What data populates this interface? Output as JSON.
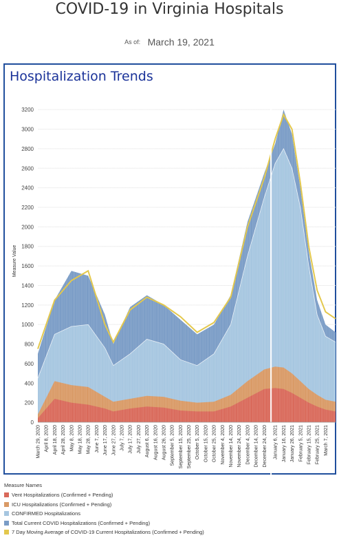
{
  "header": {
    "title": "COVID-19 in Virginia Hospitals",
    "asof_label": "As of:",
    "asof_date": "March 19, 2021"
  },
  "panel": {
    "title": "Hospitalization Trends"
  },
  "legend": {
    "title": "Measure Names",
    "items": [
      {
        "label": "Vent Hospitalizations (Confirmed + Pending)",
        "color": "#d9695a"
      },
      {
        "label": "ICU Hospitalizations (Confirmed + Pending)",
        "color": "#d99a66"
      },
      {
        "label": "CONFIRMED Hospitalizations",
        "color": "#a6c6e0"
      },
      {
        "label": "Total Current COVID Hospitalizations (Confirmed + Pending)",
        "color": "#7a9cc6"
      },
      {
        "label": "7 Day Moving Average of COVID-19 Current Hospitalizations (Confirmed + Pending)",
        "color": "#e3c84d"
      }
    ]
  },
  "chart_data": {
    "type": "area",
    "ylabel": "Measure Value",
    "ylim": [
      0,
      3300
    ],
    "yticks": [
      0,
      200,
      400,
      600,
      800,
      1000,
      1200,
      1400,
      1600,
      1800,
      2000,
      2200,
      2400,
      2600,
      2800,
      3000,
      3200
    ],
    "x_tick_labels": [
      "March 29, 2020",
      "April 8, 2020",
      "April 18, 2020",
      "April 28, 2020",
      "May 8, 2020",
      "May 18, 2020",
      "May 28, 2020",
      "June 7, 2020",
      "June 17, 2020",
      "June 27, 2020",
      "July 7, 2020",
      "July 17, 2020",
      "July 27, 2020",
      "August 6, 2020",
      "August 16, 2020",
      "August 26, 2020",
      "September 5, 2020",
      "September 15, 2020",
      "September 25, 2020",
      "October 5, 2020",
      "October 15, 2020",
      "October 25, 2020",
      "November 4, 2020",
      "November 14, 2020",
      "November 24, 2020",
      "December 4, 2020",
      "December 14, 2020",
      "December 24, 2020",
      "January 6, 2021",
      "January 16, 2021",
      "January 26, 2021",
      "February 5, 2021",
      "February 15, 2021",
      "February 25, 2021",
      "March 7, 2021"
    ],
    "x": [
      "2020-03-29",
      "2020-04-18",
      "2020-05-08",
      "2020-05-28",
      "2020-06-17",
      "2020-06-27",
      "2020-07-17",
      "2020-08-06",
      "2020-08-26",
      "2020-09-15",
      "2020-10-05",
      "2020-10-25",
      "2020-11-14",
      "2020-12-04",
      "2020-12-24",
      "2021-01-06",
      "2021-01-16",
      "2021-01-26",
      "2021-02-05",
      "2021-02-15",
      "2021-02-25",
      "2021-03-07",
      "2021-03-19"
    ],
    "series": [
      {
        "name": "Vent Hospitalizations (Confirmed + Pending)",
        "values": [
          40,
          240,
          200,
          180,
          140,
          110,
          140,
          160,
          150,
          120,
          110,
          110,
          160,
          250,
          340,
          350,
          340,
          300,
          250,
          200,
          160,
          130,
          110
        ]
      },
      {
        "name": "ICU Hospitalizations (Confirmed + Pending)",
        "values": [
          80,
          420,
          380,
          360,
          260,
          210,
          240,
          270,
          260,
          220,
          200,
          210,
          280,
          420,
          540,
          570,
          560,
          500,
          420,
          340,
          280,
          230,
          210
        ]
      },
      {
        "name": "CONFIRMED Hospitalizations",
        "values": [
          450,
          900,
          980,
          1000,
          760,
          580,
          700,
          850,
          800,
          640,
          580,
          700,
          1000,
          1700,
          2300,
          2650,
          2800,
          2600,
          2200,
          1600,
          1100,
          880,
          820
        ]
      },
      {
        "name": "Total Current COVID Hospitalizations (Confirmed + Pending)",
        "values": [
          700,
          1250,
          1550,
          1500,
          1100,
          800,
          1180,
          1300,
          1200,
          1050,
          900,
          1000,
          1300,
          2050,
          2550,
          2850,
          3200,
          2950,
          2400,
          1750,
          1250,
          1000,
          920
        ]
      },
      {
        "name": "7 Day Moving Average of COVID-19 Current Hospitalizations (Confirmed + Pending)",
        "values": [
          750,
          1250,
          1450,
          1550,
          1000,
          820,
          1150,
          1280,
          1200,
          1080,
          920,
          1020,
          1280,
          2000,
          2500,
          2900,
          3150,
          3000,
          2450,
          1800,
          1350,
          1130,
          1060
        ]
      }
    ]
  }
}
